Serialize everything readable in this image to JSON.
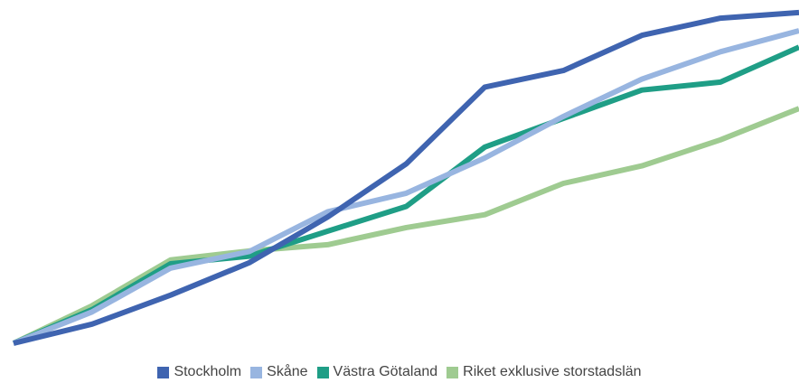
{
  "chart_data": {
    "type": "line",
    "title": "",
    "xlabel": "",
    "ylabel": "",
    "grid": false,
    "legend_position": "bottom",
    "x": [
      0,
      1,
      2,
      3,
      4,
      5,
      6,
      7,
      8,
      9,
      10
    ],
    "ylim": [
      0,
      100
    ],
    "series": [
      {
        "name": "Stockholm",
        "color": "#3f64b0",
        "values": [
          0,
          5.8,
          14.6,
          24.4,
          38.3,
          54.4,
          77.7,
          82.7,
          93.4,
          98.6,
          100.3
        ]
      },
      {
        "name": "Skåne",
        "color": "#98b5e0",
        "values": [
          0,
          9.5,
          22.8,
          27.8,
          39.9,
          45.5,
          56.2,
          68.8,
          80.1,
          88.4,
          94.8
        ]
      },
      {
        "name": "Västra Götaland",
        "color": "#1f9e86",
        "values": [
          0,
          10.2,
          24.1,
          26.4,
          34.0,
          41.5,
          59.5,
          68.2,
          76.8,
          79.2,
          89.8
        ]
      },
      {
        "name": "Riket exklusive storstadslän",
        "color": "#9fcb91",
        "values": [
          0,
          11.4,
          25.3,
          28.0,
          29.9,
          35.1,
          39.0,
          48.5,
          53.8,
          61.7,
          71.2
        ]
      }
    ]
  }
}
